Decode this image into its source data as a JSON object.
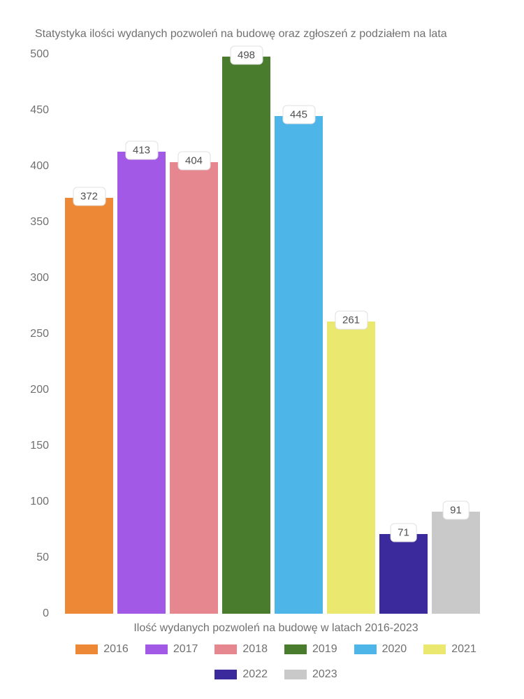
{
  "chart": {
    "type": "bar",
    "title": "Statystyka ilości wydanych pozwoleń na budowę oraz zgłoszeń z podziałem na lata",
    "xlabel": "Ilość wydanych pozwoleń na budowę w latach 2016-2023",
    "ylim": [
      0,
      500
    ],
    "ytick_step": 50,
    "yticks": [
      0,
      50,
      100,
      150,
      200,
      250,
      300,
      350,
      400,
      450,
      500
    ],
    "background_color": "#ffffff",
    "title_color": "#707070",
    "axis_text_color": "#707070",
    "title_fontsize": 16,
    "axis_fontsize": 16,
    "label_fontsize": 15,
    "label_bg": "#ffffff",
    "label_border": "#e0e0e0",
    "label_border_radius": 6,
    "bar_gap": 6,
    "series": [
      {
        "year": "2016",
        "value": 372,
        "color": "#ed8936"
      },
      {
        "year": "2017",
        "value": 413,
        "color": "#a259e6"
      },
      {
        "year": "2018",
        "value": 404,
        "color": "#e6868f"
      },
      {
        "year": "2019",
        "value": 498,
        "color": "#4a7c2e"
      },
      {
        "year": "2020",
        "value": 445,
        "color": "#4db5e8"
      },
      {
        "year": "2021",
        "value": 261,
        "color": "#eae86f"
      },
      {
        "year": "2022",
        "value": 71,
        "color": "#3b2a9b"
      },
      {
        "year": "2023",
        "value": 91,
        "color": "#c9c9c9"
      }
    ]
  }
}
